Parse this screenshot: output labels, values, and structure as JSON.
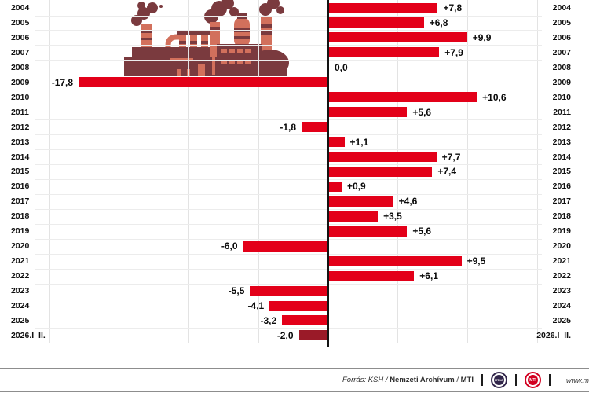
{
  "chart_data": {
    "type": "bar",
    "orientation": "horizontal",
    "value_format": "signed percent, Hungarian decimal comma",
    "categories": [
      "2004",
      "2005",
      "2006",
      "2007",
      "2008",
      "2009",
      "2010",
      "2011",
      "2012",
      "2013",
      "2014",
      "2015",
      "2016",
      "2017",
      "2018",
      "2019",
      "2020",
      "2021",
      "2022",
      "2023",
      "2024",
      "2025",
      "2026.I–II."
    ],
    "values": [
      7.8,
      6.8,
      9.9,
      7.9,
      0.0,
      -17.8,
      10.6,
      5.6,
      -1.8,
      1.1,
      7.7,
      7.4,
      0.9,
      4.6,
      3.5,
      5.6,
      -6.0,
      9.5,
      6.1,
      -5.5,
      -4.1,
      -3.2,
      -2.0
    ],
    "labels": [
      "+7,8",
      "+6,8",
      "+9,9",
      "+7,9",
      "0,0",
      "-17,8",
      "+10,6",
      "+5,6",
      "-1,8",
      "+1,1",
      "+7,7",
      "+7,4",
      "+0,9",
      "+4,6",
      "+3,5",
      "+5,6",
      "-6,0",
      "+9,5",
      "+6,1",
      "-5,5",
      "-4,1",
      "-3,2",
      "-2,0"
    ],
    "highlighted_last_period": "2026.I–II.",
    "xlim": [
      -20,
      15
    ],
    "gridline_step": 5,
    "grid": true,
    "axis_position": "zero-centered vertical axis",
    "year_labels_on_both_sides": true
  },
  "rows": [
    {
      "year": "2004",
      "value": 7.8,
      "label": "+7,8",
      "highlight": false
    },
    {
      "year": "2005",
      "value": 6.8,
      "label": "+6,8",
      "highlight": false
    },
    {
      "year": "2006",
      "value": 9.9,
      "label": "+9,9",
      "highlight": false
    },
    {
      "year": "2007",
      "value": 7.9,
      "label": "+7,9",
      "highlight": false
    },
    {
      "year": "2008",
      "value": 0.0,
      "label": "0,0",
      "highlight": false
    },
    {
      "year": "2009",
      "value": -17.8,
      "label": "-17,8",
      "highlight": false
    },
    {
      "year": "2010",
      "value": 10.6,
      "label": "+10,6",
      "highlight": false
    },
    {
      "year": "2011",
      "value": 5.6,
      "label": "+5,6",
      "highlight": false
    },
    {
      "year": "2012",
      "value": -1.8,
      "label": "-1,8",
      "highlight": false
    },
    {
      "year": "2013",
      "value": 1.1,
      "label": "+1,1",
      "highlight": false
    },
    {
      "year": "2014",
      "value": 7.7,
      "label": "+7,7",
      "highlight": false
    },
    {
      "year": "2015",
      "value": 7.4,
      "label": "+7,4",
      "highlight": false
    },
    {
      "year": "2016",
      "value": 0.9,
      "label": "+0,9",
      "highlight": false
    },
    {
      "year": "2017",
      "value": 4.6,
      "label": "+4,6",
      "highlight": false
    },
    {
      "year": "2018",
      "value": 3.5,
      "label": "+3,5",
      "highlight": false
    },
    {
      "year": "2019",
      "value": 5.6,
      "label": "+5,6",
      "highlight": false
    },
    {
      "year": "2020",
      "value": -6.0,
      "label": "-6,0",
      "highlight": false
    },
    {
      "year": "2021",
      "value": 9.5,
      "label": "+9,5",
      "highlight": false
    },
    {
      "year": "2022",
      "value": 6.1,
      "label": "+6,1",
      "highlight": false
    },
    {
      "year": "2023",
      "value": -5.5,
      "label": "-5,5",
      "highlight": false
    },
    {
      "year": "2024",
      "value": -4.1,
      "label": "-4,1",
      "highlight": false
    },
    {
      "year": "2025",
      "value": -3.2,
      "label": "-3,2",
      "highlight": false
    },
    {
      "year": "2026.I–II.",
      "value": -2.0,
      "label": "-2,0",
      "highlight": true
    }
  ],
  "colors": {
    "bar_red": "#e30019",
    "bar_dark_red": "#9a1a28",
    "axis_black": "#141414",
    "factory_dark": "#7a3a3e",
    "factory_salmon": "#d2705c"
  },
  "footer": {
    "source_italic": "Forrás: KSH /",
    "source_bold_1": "Nemzeti Archívum",
    "source_slash": "/",
    "source_bold_2": "MTI",
    "logo_mtva": "MTVA",
    "logo_mti": "MTI",
    "website": "www.m"
  }
}
